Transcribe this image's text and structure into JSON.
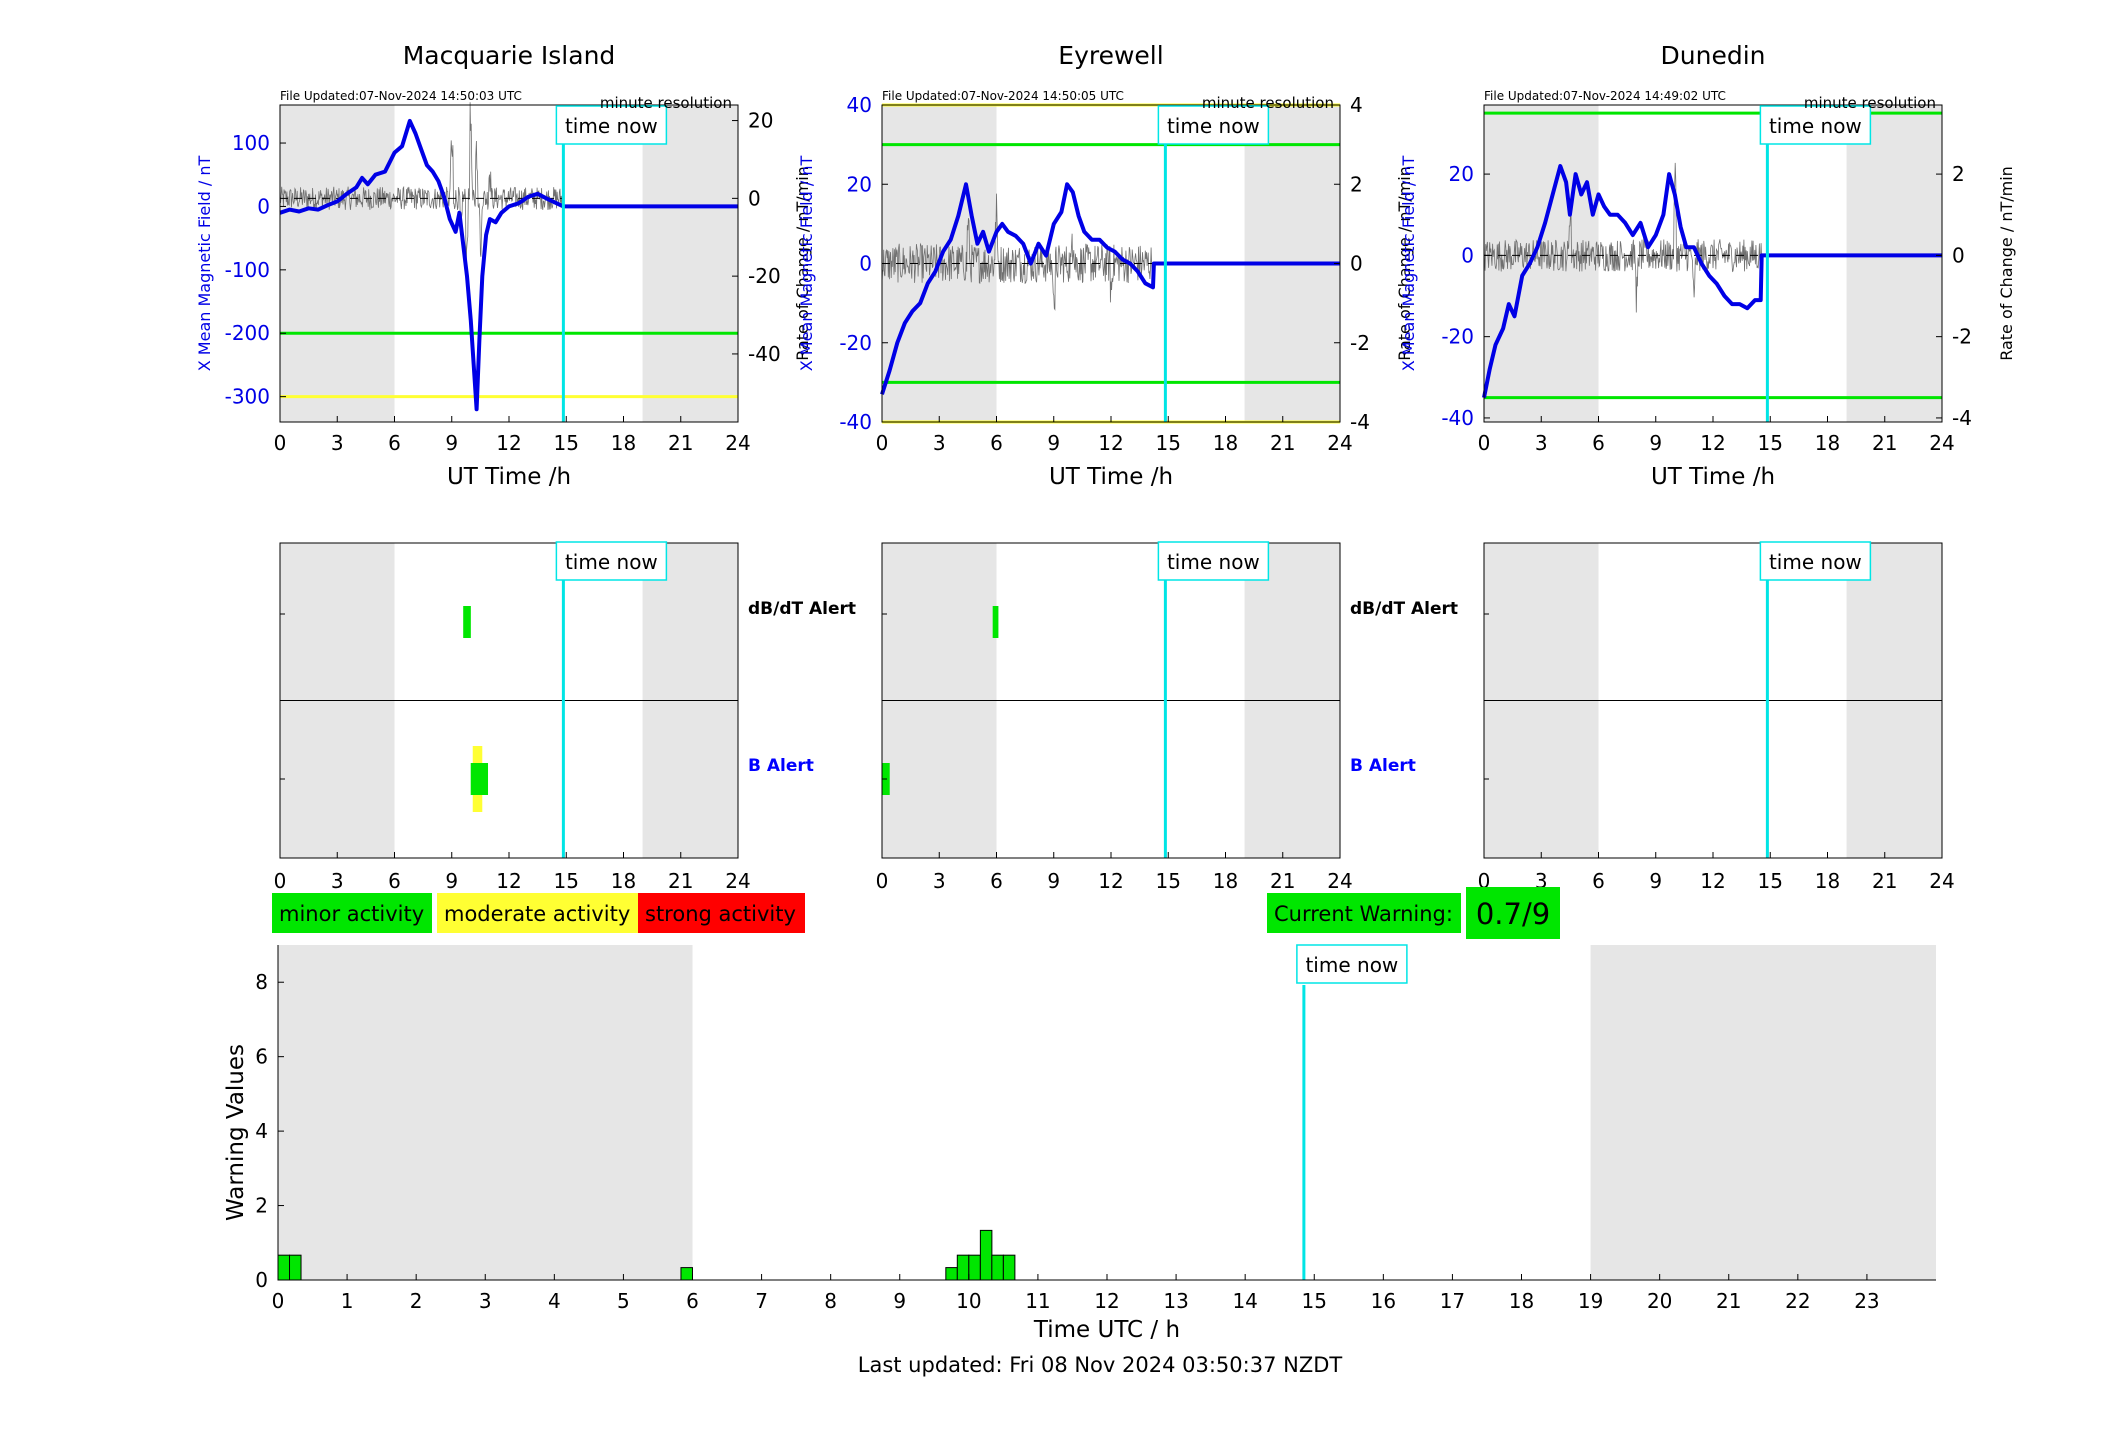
{
  "colors": {
    "mag": "#0000e6",
    "roc": "#707070",
    "green": "#00e600",
    "yellow": "#ffff33",
    "red": "#ff0000",
    "now": "#00e5e5",
    "shade": "#e6e6e6",
    "dbdt_label": "#000000",
    "b_label": "#0000ff"
  },
  "time_now_label": "time now",
  "time_now_hour": 14.85,
  "resolution_label": "minute resolution",
  "stations": [
    {
      "name": "Macquarie Island",
      "file_updated": "File Updated:07-Nov-2024 14:50:03 UTC",
      "night_shade_hours": [
        [
          0,
          6
        ],
        [
          19,
          24
        ]
      ],
      "left_ylim": [
        -340,
        160
      ],
      "left_ticks": [
        100,
        0,
        -100,
        -200,
        -300
      ],
      "right_ylim": [
        -57.5,
        24
      ],
      "right_ticks": [
        20,
        0,
        -20,
        -40
      ],
      "thresholds": [
        {
          "value": -200,
          "color": "green"
        },
        {
          "value": -300,
          "color": "yellow"
        }
      ],
      "mag_series": [
        [
          0,
          -10
        ],
        [
          0.5,
          -5
        ],
        [
          1,
          -8
        ],
        [
          1.5,
          -3
        ],
        [
          2,
          -5
        ],
        [
          2.5,
          2
        ],
        [
          3,
          8
        ],
        [
          3.5,
          20
        ],
        [
          4,
          30
        ],
        [
          4.3,
          45
        ],
        [
          4.6,
          35
        ],
        [
          5,
          50
        ],
        [
          5.5,
          55
        ],
        [
          6,
          85
        ],
        [
          6.4,
          95
        ],
        [
          6.8,
          135
        ],
        [
          7.1,
          115
        ],
        [
          7.4,
          90
        ],
        [
          7.7,
          65
        ],
        [
          8,
          55
        ],
        [
          8.3,
          40
        ],
        [
          8.6,
          15
        ],
        [
          8.9,
          -20
        ],
        [
          9.2,
          -40
        ],
        [
          9.4,
          -10
        ],
        [
          9.6,
          -60
        ],
        [
          9.8,
          -110
        ],
        [
          10,
          -180
        ],
        [
          10.15,
          -250
        ],
        [
          10.3,
          -320
        ],
        [
          10.45,
          -210
        ],
        [
          10.6,
          -110
        ],
        [
          10.8,
          -45
        ],
        [
          11,
          -20
        ],
        [
          11.3,
          -25
        ],
        [
          11.6,
          -10
        ],
        [
          12,
          0
        ],
        [
          12.5,
          5
        ],
        [
          13,
          15
        ],
        [
          13.5,
          20
        ],
        [
          14,
          12
        ],
        [
          14.5,
          5
        ],
        [
          14.85,
          0
        ],
        [
          24,
          0
        ]
      ],
      "roc_amp": 3,
      "roc_spikes": [
        [
          9,
          15
        ],
        [
          9.5,
          -10
        ],
        [
          10,
          25
        ],
        [
          10.5,
          -15
        ],
        [
          11,
          10
        ],
        [
          9.8,
          -22
        ],
        [
          10.3,
          18
        ]
      ],
      "roc_end": 14.85,
      "dbdt_alert_blocks": [
        {
          "start": 9.6,
          "end": 10.0,
          "color": "green"
        }
      ],
      "b_alert_blocks": [
        {
          "start": 10.0,
          "end": 10.9,
          "color": "green"
        },
        {
          "start": 10.1,
          "end": 10.6,
          "color": "yellow"
        }
      ],
      "show_alert_labels": true
    },
    {
      "name": "Eyrewell",
      "file_updated": "File Updated:07-Nov-2024 14:50:05 UTC",
      "night_shade_hours": [
        [
          0,
          6
        ],
        [
          19,
          24
        ]
      ],
      "left_ylim": [
        -40,
        40
      ],
      "left_ticks": [
        40,
        20,
        0,
        -20,
        -40
      ],
      "right_ylim": [
        -4,
        4
      ],
      "right_ticks": [
        4,
        2,
        0,
        -2,
        -4
      ],
      "thresholds": [
        {
          "value": 40,
          "color": "yellow"
        },
        {
          "value": 30,
          "color": "green"
        },
        {
          "value": -30,
          "color": "green"
        },
        {
          "value": -40,
          "color": "yellow"
        }
      ],
      "mag_series": [
        [
          0,
          -33
        ],
        [
          0.4,
          -27
        ],
        [
          0.8,
          -20
        ],
        [
          1.2,
          -15
        ],
        [
          1.6,
          -12
        ],
        [
          2,
          -10
        ],
        [
          2.4,
          -5
        ],
        [
          2.8,
          -2
        ],
        [
          3.2,
          3
        ],
        [
          3.6,
          6
        ],
        [
          4,
          12
        ],
        [
          4.4,
          20
        ],
        [
          4.7,
          12
        ],
        [
          5,
          5
        ],
        [
          5.3,
          8
        ],
        [
          5.6,
          3
        ],
        [
          6,
          8
        ],
        [
          6.3,
          10
        ],
        [
          6.6,
          8
        ],
        [
          7,
          7
        ],
        [
          7.4,
          5
        ],
        [
          7.8,
          0
        ],
        [
          8.2,
          5
        ],
        [
          8.6,
          2
        ],
        [
          9,
          10
        ],
        [
          9.4,
          13
        ],
        [
          9.7,
          20
        ],
        [
          10,
          18
        ],
        [
          10.3,
          12
        ],
        [
          10.6,
          8
        ],
        [
          11,
          6
        ],
        [
          11.4,
          6
        ],
        [
          11.8,
          4
        ],
        [
          12.2,
          3
        ],
        [
          12.6,
          1
        ],
        [
          13,
          0
        ],
        [
          13.4,
          -2
        ],
        [
          13.8,
          -5
        ],
        [
          14.2,
          -6
        ],
        [
          14.25,
          0
        ],
        [
          24,
          0
        ]
      ],
      "roc_amp": 0.5,
      "roc_spikes": [
        [
          6,
          1.8
        ],
        [
          4.5,
          1.2
        ],
        [
          9,
          -1
        ],
        [
          10,
          1
        ],
        [
          12,
          -0.8
        ]
      ],
      "roc_end": 14.2,
      "dbdt_alert_blocks": [
        {
          "start": 5.8,
          "end": 6.1,
          "color": "green"
        }
      ],
      "b_alert_blocks": [
        {
          "start": 0.0,
          "end": 0.4,
          "color": "green"
        }
      ],
      "show_alert_labels": true
    },
    {
      "name": "Dunedin",
      "file_updated": "File Updated:07-Nov-2024 14:49:02 UTC",
      "night_shade_hours": [
        [
          0,
          6
        ],
        [
          19,
          24
        ]
      ],
      "left_ylim": [
        -41,
        37
      ],
      "left_ticks": [
        20,
        0,
        -20,
        -40
      ],
      "right_ylim": [
        -4.1,
        3.7
      ],
      "right_ticks": [
        2,
        0,
        -2,
        -4
      ],
      "thresholds": [
        {
          "value": 35,
          "color": "green"
        },
        {
          "value": -35,
          "color": "green"
        }
      ],
      "mag_series": [
        [
          0,
          -35
        ],
        [
          0.3,
          -28
        ],
        [
          0.6,
          -22
        ],
        [
          1,
          -18
        ],
        [
          1.3,
          -12
        ],
        [
          1.6,
          -15
        ],
        [
          2,
          -5
        ],
        [
          2.4,
          -2
        ],
        [
          2.8,
          2
        ],
        [
          3.2,
          8
        ],
        [
          3.6,
          15
        ],
        [
          4,
          22
        ],
        [
          4.3,
          18
        ],
        [
          4.5,
          10
        ],
        [
          4.8,
          20
        ],
        [
          5.1,
          15
        ],
        [
          5.4,
          18
        ],
        [
          5.7,
          10
        ],
        [
          6,
          15
        ],
        [
          6.3,
          12
        ],
        [
          6.6,
          10
        ],
        [
          7,
          10
        ],
        [
          7.4,
          8
        ],
        [
          7.8,
          5
        ],
        [
          8.2,
          8
        ],
        [
          8.6,
          2
        ],
        [
          9,
          5
        ],
        [
          9.4,
          10
        ],
        [
          9.7,
          20
        ],
        [
          10,
          15
        ],
        [
          10.3,
          7
        ],
        [
          10.6,
          2
        ],
        [
          11,
          2
        ],
        [
          11.4,
          -2
        ],
        [
          11.8,
          -5
        ],
        [
          12.2,
          -7
        ],
        [
          12.6,
          -10
        ],
        [
          13,
          -12
        ],
        [
          13.4,
          -12
        ],
        [
          13.8,
          -13
        ],
        [
          14.2,
          -11
        ],
        [
          14.5,
          -11
        ],
        [
          14.55,
          0
        ],
        [
          24,
          0
        ]
      ],
      "roc_amp": 0.4,
      "roc_spikes": [
        [
          10,
          2.5
        ],
        [
          4.5,
          1.5
        ],
        [
          8,
          -1.2
        ],
        [
          11,
          -1
        ]
      ],
      "roc_end": 14.55,
      "dbdt_alert_blocks": [],
      "b_alert_blocks": [],
      "show_alert_labels": false
    }
  ],
  "axis_labels": {
    "left_y": "X Mean Magnetic Field / nT",
    "right_y": "Rate of Change / nT/min",
    "x": "UT Time /h"
  },
  "alert_labels": {
    "dbdt": "dB/dT Alert",
    "b": "B Alert"
  },
  "x_ticks": [
    0,
    3,
    6,
    9,
    12,
    15,
    18,
    21,
    24
  ],
  "legend": [
    {
      "label": "minor activity",
      "color": "green"
    },
    {
      "label": "moderate activity",
      "color": "yellow"
    },
    {
      "label": "strong activity",
      "color": "red"
    }
  ],
  "current_warning": {
    "label": "Current Warning:",
    "value": "0.7/9"
  },
  "chart_data": {
    "type": "bar",
    "title": "",
    "xlabel": "Time UTC / h",
    "ylabel": "Warning Values",
    "xlim": [
      0,
      24
    ],
    "ylim": [
      0,
      9
    ],
    "x_ticks": [
      0,
      1,
      2,
      3,
      4,
      5,
      6,
      7,
      8,
      9,
      10,
      11,
      12,
      13,
      14,
      15,
      16,
      17,
      18,
      19,
      20,
      21,
      22,
      23
    ],
    "y_ticks": [
      0,
      2,
      4,
      6,
      8
    ],
    "night_shade_hours": [
      [
        0,
        6
      ],
      [
        19,
        24
      ]
    ],
    "bin_width_hours": 0.1667,
    "bars": [
      {
        "x": 0.0,
        "value": 0.667
      },
      {
        "x": 0.1667,
        "value": 0.667
      },
      {
        "x": 5.833,
        "value": 0.333
      },
      {
        "x": 9.667,
        "value": 0.333
      },
      {
        "x": 9.833,
        "value": 0.667
      },
      {
        "x": 10.0,
        "value": 0.667
      },
      {
        "x": 10.167,
        "value": 1.333
      },
      {
        "x": 10.333,
        "value": 0.667
      },
      {
        "x": 10.5,
        "value": 0.667
      }
    ],
    "bar_color": "#00e600"
  },
  "last_updated": "Last updated: Fri 08 Nov 2024 03:50:37 NZDT"
}
